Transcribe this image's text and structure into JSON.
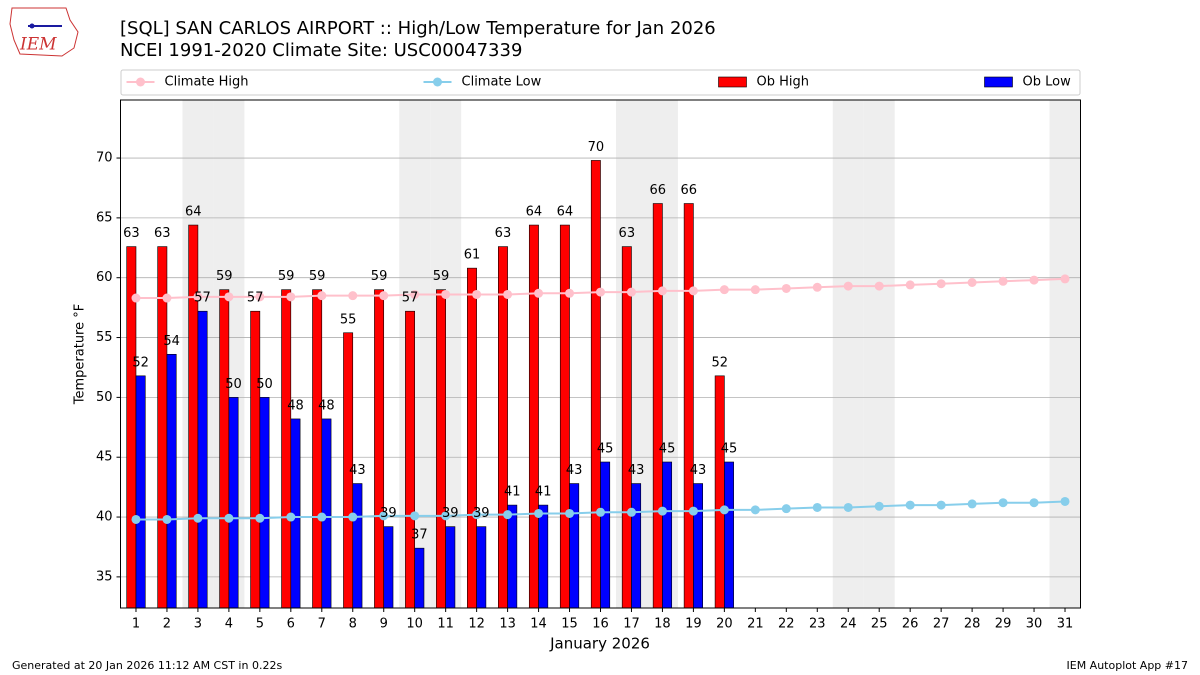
{
  "chart_data": {
    "type": "bar",
    "logo": "IEM",
    "title": "[SQL] SAN CARLOS AIRPORT :: High/Low Temperature for Jan 2026",
    "subtitle": "NCEI 1991-2020 Climate Site: USC00047339",
    "x_label": "January 2026",
    "y_label": "Temperature °F",
    "categories": [
      "1",
      "2",
      "3",
      "4",
      "5",
      "6",
      "7",
      "8",
      "9",
      "10",
      "11",
      "12",
      "13",
      "14",
      "15",
      "16",
      "17",
      "18",
      "19",
      "20",
      "21",
      "22",
      "23",
      "24",
      "25",
      "26",
      "27",
      "28",
      "29",
      "30",
      "31"
    ],
    "shade": [
      3,
      4,
      10,
      11,
      17,
      18,
      24,
      25,
      31
    ],
    "series": [
      {
        "name": "Climate High",
        "kind": "line",
        "color": "#ffc0cb",
        "values": [
          58.3,
          58.3,
          58.4,
          58.4,
          58.4,
          58.4,
          58.5,
          58.5,
          58.5,
          58.6,
          58.6,
          58.6,
          58.6,
          58.7,
          58.7,
          58.8,
          58.8,
          58.9,
          58.9,
          59.0,
          59.0,
          59.1,
          59.2,
          59.3,
          59.3,
          59.4,
          59.5,
          59.6,
          59.7,
          59.8,
          59.9
        ]
      },
      {
        "name": "Climate Low",
        "kind": "line",
        "color": "#87ceeb",
        "values": [
          39.8,
          39.8,
          39.9,
          39.9,
          39.9,
          40.0,
          40.0,
          40.0,
          40.1,
          40.1,
          40.1,
          40.2,
          40.2,
          40.3,
          40.3,
          40.4,
          40.4,
          40.5,
          40.5,
          40.6,
          40.6,
          40.7,
          40.8,
          40.8,
          40.9,
          41.0,
          41.0,
          41.1,
          41.2,
          41.2,
          41.3
        ]
      },
      {
        "name": "Ob High",
        "kind": "bar",
        "color": "#ff0000",
        "values": [
          62.6,
          62.6,
          64.4,
          59.0,
          57.2,
          59.0,
          59.0,
          55.4,
          59.0,
          57.2,
          59.0,
          60.8,
          62.6,
          64.4,
          64.4,
          69.8,
          62.6,
          66.2,
          66.2,
          51.8,
          null,
          null,
          null,
          null,
          null,
          null,
          null,
          null,
          null,
          null,
          null
        ],
        "value_labels": [
          "63",
          "63",
          "64",
          "59",
          "57",
          "59",
          "59",
          "55",
          "59",
          "57",
          "59",
          "61",
          "63",
          "64",
          "64",
          "70",
          "63",
          "66",
          "66",
          "52",
          null,
          null,
          null,
          null,
          null,
          null,
          null,
          null,
          null,
          null,
          null
        ]
      },
      {
        "name": "Ob Low",
        "kind": "bar",
        "color": "#0000ff",
        "values": [
          51.8,
          53.6,
          57.2,
          50.0,
          50.0,
          48.2,
          48.2,
          42.8,
          39.2,
          37.4,
          39.2,
          39.2,
          41.0,
          41.0,
          42.8,
          44.6,
          42.8,
          44.6,
          42.8,
          44.6,
          null,
          null,
          null,
          null,
          null,
          null,
          null,
          null,
          null,
          null,
          null
        ],
        "value_labels": [
          "52",
          "54",
          "57",
          "50",
          "50",
          "48",
          "48",
          "43",
          "39",
          "37",
          "39",
          "39",
          "41",
          "41",
          "43",
          "45",
          "43",
          "45",
          "43",
          "45",
          null,
          null,
          null,
          null,
          null,
          null,
          null,
          null,
          null,
          null,
          null
        ]
      }
    ],
    "ylim": [
      32.4,
      74.85
    ],
    "yticks": [
      35,
      40,
      45,
      50,
      55,
      60,
      65,
      70
    ],
    "grid": true,
    "legend": "top",
    "footer_left": "Generated at 20 Jan 2026 11:12 AM CST in 0.22s",
    "footer_right": "IEM Autoplot App #17"
  }
}
